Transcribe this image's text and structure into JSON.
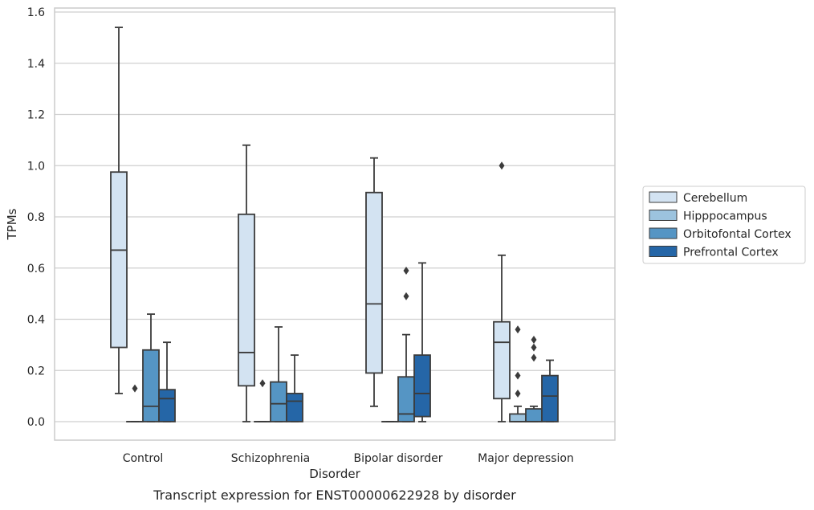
{
  "chart_data": {
    "type": "box",
    "title": "",
    "caption": "Transcript expression for ENST00000622928 by disorder",
    "xlabel": "Disorder",
    "ylabel": "TPMs",
    "ylim": [
      -0.075,
      1.62
    ],
    "yticks": [
      "0.0",
      "0.2",
      "0.4",
      "0.6",
      "0.8",
      "1.0",
      "1.2",
      "1.4",
      "1.6"
    ],
    "ytick_values": [
      0,
      0.2,
      0.4,
      0.6,
      0.8,
      1.0,
      1.2,
      1.4,
      1.6
    ],
    "grid": "horizontal",
    "legend_position": "right",
    "categories": [
      "Control",
      "Schizophrenia",
      "Bipolar disorder",
      "Major depression"
    ],
    "series": [
      {
        "name": "Cerebellum",
        "color": "#d3e3f2",
        "boxes": [
          {
            "whislo": 0.11,
            "q1": 0.29,
            "med": 0.67,
            "q3": 0.975,
            "whishi": 1.54,
            "fliers": []
          },
          {
            "whislo": 0.0,
            "q1": 0.14,
            "med": 0.27,
            "q3": 0.81,
            "whishi": 1.08,
            "fliers": []
          },
          {
            "whislo": 0.06,
            "q1": 0.19,
            "med": 0.46,
            "q3": 0.895,
            "whishi": 1.03,
            "fliers": []
          },
          {
            "whislo": 0.0,
            "q1": 0.09,
            "med": 0.31,
            "q3": 0.39,
            "whishi": 0.65,
            "fliers": [
              1.0
            ]
          }
        ]
      },
      {
        "name": "Hipppocampus",
        "color": "#9cc3de",
        "boxes": [
          {
            "whislo": 0.0,
            "q1": 0.0,
            "med": 0.0,
            "q3": 0.0,
            "whishi": 0.0,
            "fliers": [
              0.13
            ]
          },
          {
            "whislo": 0.0,
            "q1": 0.0,
            "med": 0.0,
            "q3": 0.0,
            "whishi": 0.0,
            "fliers": [
              0.15
            ]
          },
          {
            "whislo": 0.0,
            "q1": 0.0,
            "med": 0.0,
            "q3": 0.0,
            "whishi": 0.0,
            "fliers": []
          },
          {
            "whislo": 0.0,
            "q1": 0.0,
            "med": 0.0,
            "q3": 0.03,
            "whishi": 0.06,
            "fliers": [
              0.11,
              0.18,
              0.36
            ]
          }
        ]
      },
      {
        "name": "Orbitofontal Cortex",
        "color": "#5595c4",
        "boxes": [
          {
            "whislo": 0.0,
            "q1": 0.0,
            "med": 0.06,
            "q3": 0.28,
            "whishi": 0.42,
            "fliers": []
          },
          {
            "whislo": 0.0,
            "q1": 0.0,
            "med": 0.07,
            "q3": 0.155,
            "whishi": 0.37,
            "fliers": []
          },
          {
            "whislo": 0.0,
            "q1": 0.0,
            "med": 0.03,
            "q3": 0.175,
            "whishi": 0.34,
            "fliers": [
              0.49,
              0.59
            ]
          },
          {
            "whislo": 0.0,
            "q1": 0.0,
            "med": 0.0,
            "q3": 0.05,
            "whishi": 0.06,
            "fliers": [
              0.25,
              0.29,
              0.32
            ]
          }
        ]
      },
      {
        "name": "Prefrontal Cortex",
        "color": "#2566a7",
        "boxes": [
          {
            "whislo": 0.0,
            "q1": 0.0,
            "med": 0.09,
            "q3": 0.125,
            "whishi": 0.31,
            "fliers": []
          },
          {
            "whislo": 0.0,
            "q1": 0.0,
            "med": 0.08,
            "q3": 0.11,
            "whishi": 0.26,
            "fliers": []
          },
          {
            "whislo": 0.0,
            "q1": 0.02,
            "med": 0.11,
            "q3": 0.26,
            "whishi": 0.62,
            "fliers": []
          },
          {
            "whislo": 0.0,
            "q1": 0.0,
            "med": 0.1,
            "q3": 0.18,
            "whishi": 0.24,
            "fliers": []
          }
        ]
      }
    ],
    "colors": {
      "line": "#3b3b3b",
      "grid": "#cfcfcf",
      "frame": "#cccccc"
    }
  }
}
